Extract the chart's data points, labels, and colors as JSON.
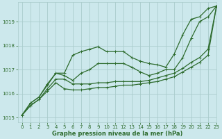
{
  "xlabel": "Graphe pression niveau de la mer (hPa)",
  "bg_color": "#cce8ec",
  "grid_color": "#aacccc",
  "line_color": "#2d6b2d",
  "xlim": [
    -0.5,
    23
  ],
  "ylim": [
    1014.8,
    1019.8
  ],
  "yticks": [
    1015,
    1016,
    1017,
    1018,
    1019
  ],
  "xticks": [
    0,
    1,
    2,
    3,
    4,
    5,
    6,
    7,
    8,
    9,
    10,
    11,
    12,
    13,
    14,
    15,
    16,
    17,
    18,
    19,
    20,
    21,
    22,
    23
  ],
  "series": [
    [
      1015.1,
      1015.6,
      1015.85,
      1016.4,
      1016.85,
      1016.85,
      1017.6,
      1017.75,
      1017.85,
      1017.95,
      1017.75,
      1017.75,
      1017.75,
      1017.5,
      1017.35,
      1017.25,
      1017.2,
      1017.1,
      1017.65,
      1018.45,
      1019.1,
      1019.2,
      1019.55,
      1019.65
    ],
    [
      1015.1,
      1015.6,
      1015.85,
      1016.35,
      1016.85,
      1016.75,
      1016.55,
      1016.85,
      1017.0,
      1017.25,
      1017.25,
      1017.25,
      1017.25,
      1017.1,
      1016.9,
      1016.75,
      1016.85,
      1017.0,
      1017.0,
      1017.5,
      1018.3,
      1019.0,
      1019.2,
      1019.65
    ],
    [
      1015.1,
      1015.5,
      1015.75,
      1016.2,
      1016.6,
      1016.6,
      1016.4,
      1016.4,
      1016.4,
      1016.45,
      1016.45,
      1016.5,
      1016.5,
      1016.5,
      1016.5,
      1016.55,
      1016.65,
      1016.75,
      1016.85,
      1017.05,
      1017.3,
      1017.5,
      1017.85,
      1019.65
    ],
    [
      1015.1,
      1015.5,
      1015.75,
      1016.1,
      1016.45,
      1016.2,
      1016.15,
      1016.15,
      1016.2,
      1016.25,
      1016.25,
      1016.3,
      1016.35,
      1016.35,
      1016.4,
      1016.45,
      1016.5,
      1016.6,
      1016.7,
      1016.9,
      1017.1,
      1017.3,
      1017.6,
      1019.65
    ]
  ]
}
